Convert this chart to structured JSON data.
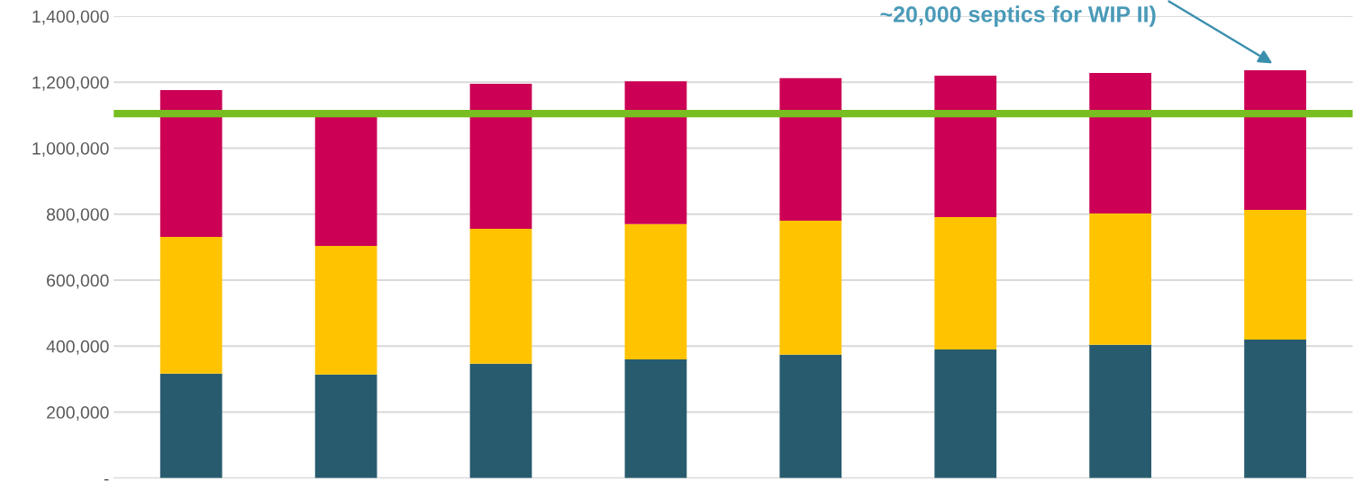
{
  "chart_data": {
    "type": "bar",
    "stacked": true,
    "categories": [
      null,
      null,
      null,
      null,
      null,
      null,
      null,
      null
    ],
    "series": [
      {
        "color": "#285b6e",
        "values": [
          317000,
          314000,
          347000,
          360000,
          374000,
          390000,
          404000,
          420000
        ]
      },
      {
        "color": "#ffc300",
        "values": [
          414000,
          390000,
          409000,
          410000,
          406000,
          401000,
          398000,
          393000
        ]
      },
      {
        "color": "#cc0055",
        "values": [
          445000,
          396000,
          439000,
          433000,
          432000,
          429000,
          426000,
          423000
        ]
      }
    ],
    "ylim": [
      0,
      1400000
    ],
    "yticks": [
      {
        "value": 0,
        "label": "-"
      },
      {
        "value": 200000,
        "label": "200,000"
      },
      {
        "value": 400000,
        "label": "400,000"
      },
      {
        "value": 600000,
        "label": "600,000"
      },
      {
        "value": 800000,
        "label": "800,000"
      },
      {
        "value": 1000000,
        "label": "1,000,000"
      },
      {
        "value": 1200000,
        "label": "1,200,000"
      },
      {
        "value": 1400000,
        "label": "1,400,000"
      }
    ],
    "grid": "y",
    "ref_lines": [
      {
        "axis": "y",
        "value": 1105000,
        "color": "#78be20"
      }
    ],
    "annotations": [
      "~20,000 septics for WIP II)"
    ]
  }
}
